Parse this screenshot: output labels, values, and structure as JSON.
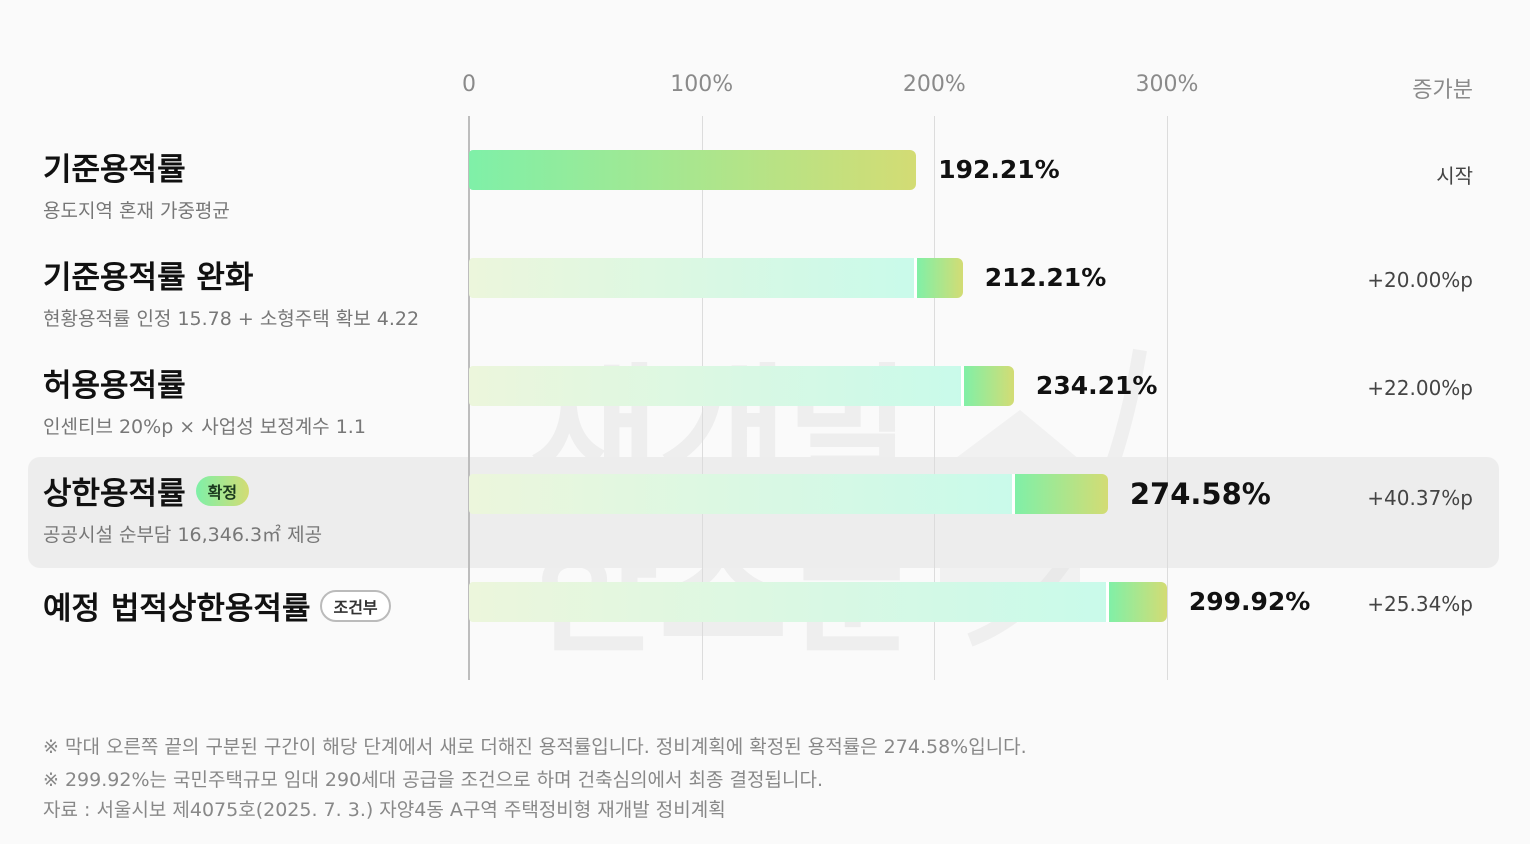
{
  "chart_data": {
    "type": "bar",
    "axis_ticks": [
      "0",
      "100%",
      "200%",
      "300%"
    ],
    "xlim": [
      0,
      300
    ],
    "increment_header": "증가분",
    "categories": [
      "기준용적률",
      "기준용적률 완화",
      "허용용적률",
      "상한용적률",
      "예정 법적상한용적률"
    ],
    "rows": [
      {
        "title": "기준용적률",
        "subtitle": "용도지역 혼재 가중평균",
        "badge": "",
        "value": 192.21,
        "value_label": "192.21%",
        "increment": 0,
        "increment_label": "시작",
        "highlight": false
      },
      {
        "title": "기준용적률 완화",
        "subtitle": "현황용적률 인정 15.78 + 소형주택 확보 4.22",
        "badge": "",
        "value": 212.21,
        "value_label": "212.21%",
        "increment": 20.0,
        "increment_label": "+20.00%p",
        "highlight": false
      },
      {
        "title": "허용용적률",
        "subtitle": "인센티브 20%p × 사업성 보정계수 1.1",
        "badge": "",
        "value": 234.21,
        "value_label": "234.21%",
        "increment": 22.0,
        "increment_label": "+22.00%p",
        "highlight": false
      },
      {
        "title": "상한용적률",
        "subtitle": "공공시설 순부담 16,346.3㎡ 제공",
        "badge": "확정",
        "value": 274.58,
        "value_label": "274.58%",
        "increment": 40.37,
        "increment_label": "+40.37%p",
        "highlight": true
      },
      {
        "title": "예정 법적상한용적률",
        "subtitle": "",
        "badge": "조건부",
        "value": 299.92,
        "value_label": "299.92%",
        "increment": 25.34,
        "increment_label": "+25.34%p",
        "highlight": false
      }
    ],
    "colors": {
      "increment_start": "#7ff0a8",
      "increment_end": "#d3dc74",
      "base_start": "#ecf6dc",
      "base_end": "#c9faea",
      "highlight_bg": "#ededed"
    },
    "notes": [
      "※ 막대 오른쪽 끝의 구분된 구간이 해당 단계에서 새로 더해진 용적률입니다. 정비계획에 확정된 용적률은 274.58%입니다.",
      "※ 299.92%는 국민주택규모 임대 290세대 공급을 조건으로 하며 건축심의에서 최종 결정됩니다.",
      "자료 : 서울시보 제4075호(2025. 7. 3.) 자양4동 A구역 주택정비형 재개발 정비계획"
    ]
  },
  "watermark": {
    "line1": "재개발",
    "line2": "한스푼"
  }
}
